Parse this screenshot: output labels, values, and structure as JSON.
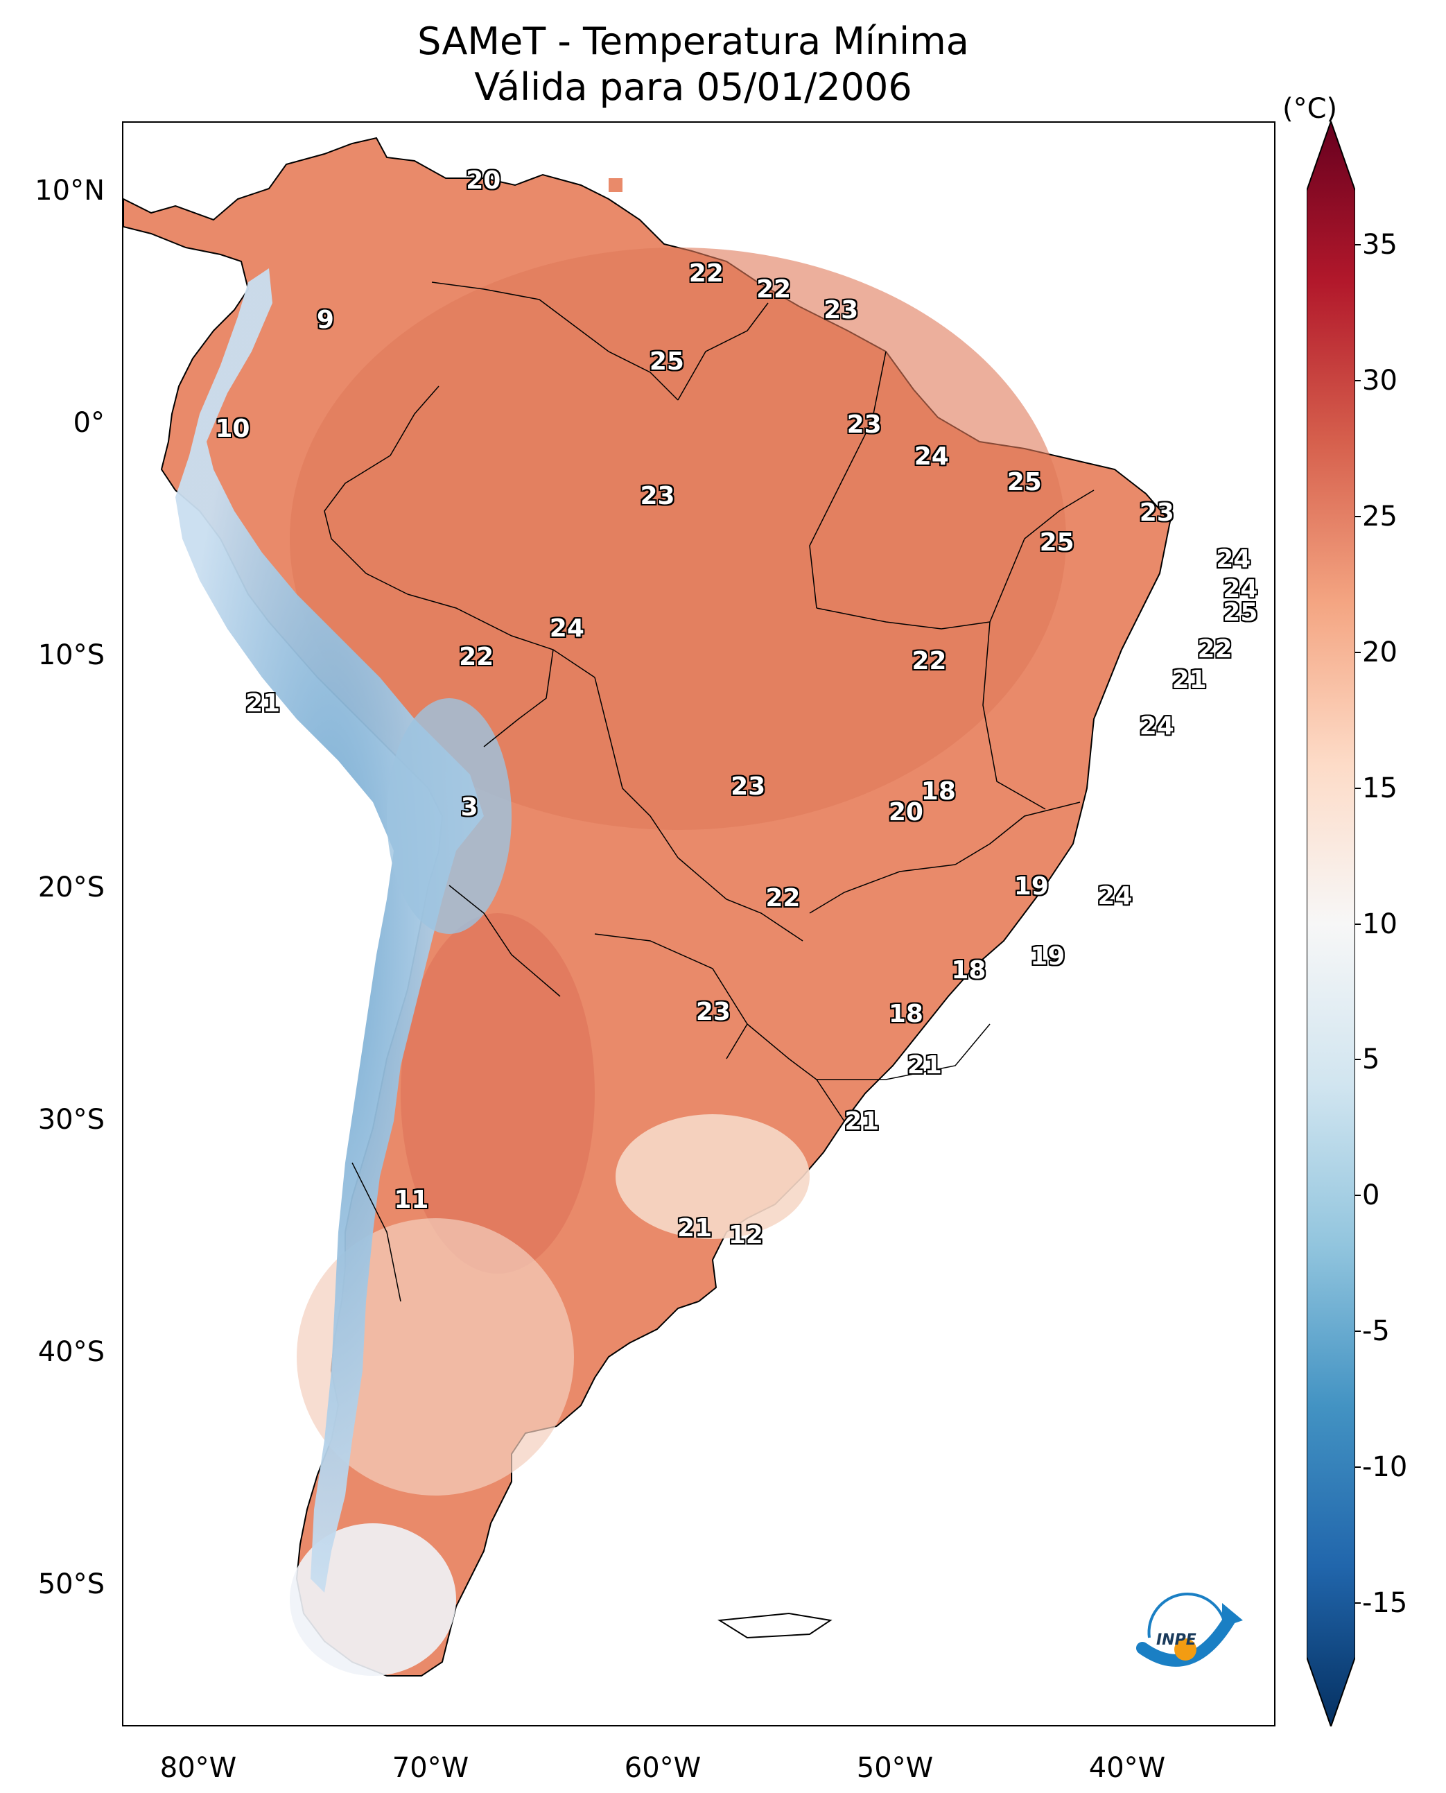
{
  "title": {
    "line1": "SAMeT - Temperatura Mínima",
    "line2": "Válida para 05/01/2006"
  },
  "colorbar": {
    "unit": "(°C)",
    "ticks": [
      "35",
      "30",
      "25",
      "20",
      "15",
      "10",
      "5",
      "0",
      "-5",
      "-10",
      "-15"
    ],
    "range": [
      -15,
      35
    ],
    "colormap": [
      "#053061",
      "#2166ac",
      "#4393c3",
      "#92c5de",
      "#d1e5f0",
      "#f7f7f7",
      "#fddbc7",
      "#f4a582",
      "#d6604d",
      "#b2182b",
      "#67001f"
    ]
  },
  "axes": {
    "lat_labels": [
      "10°N",
      "0°",
      "10°S",
      "20°S",
      "30°S",
      "40°S",
      "50°S"
    ],
    "lon_labels": [
      "80°W",
      "70°W",
      "60°W",
      "50°W",
      "40°W"
    ]
  },
  "logo": {
    "text": "INPE",
    "colors": {
      "blue": "#1a7fc4",
      "orange": "#f39c12"
    }
  },
  "map_values": [
    {
      "id": "v1",
      "text": "20",
      "lat": 10.5,
      "lon": -67.5
    },
    {
      "id": "v2",
      "text": "22",
      "lat": 6.5,
      "lon": -57.9
    },
    {
      "id": "v3",
      "text": "22",
      "lat": 5.8,
      "lon": -55.0
    },
    {
      "id": "v4",
      "text": "23",
      "lat": 4.9,
      "lon": -52.1
    },
    {
      "id": "v5",
      "text": "9",
      "lat": 4.5,
      "lon": -74.3
    },
    {
      "id": "v6",
      "text": "25",
      "lat": 2.7,
      "lon": -59.6
    },
    {
      "id": "v7",
      "text": "10",
      "lat": -0.2,
      "lon": -78.3
    },
    {
      "id": "v8",
      "text": "23",
      "lat": 0.0,
      "lon": -51.1
    },
    {
      "id": "v9",
      "text": "24",
      "lat": -1.4,
      "lon": -48.2
    },
    {
      "id": "v10",
      "text": "25",
      "lat": -2.5,
      "lon": -44.2
    },
    {
      "id": "v11",
      "text": "23",
      "lat": -3.1,
      "lon": -60.0
    },
    {
      "id": "v12",
      "text": "23",
      "lat": -3.8,
      "lon": -38.5
    },
    {
      "id": "v13",
      "text": "25",
      "lat": -5.1,
      "lon": -42.8
    },
    {
      "id": "v14",
      "text": "24",
      "lat": -5.8,
      "lon": -35.2
    },
    {
      "id": "v15",
      "text": "24",
      "lat": -7.1,
      "lon": -34.9
    },
    {
      "id": "v16",
      "text": "25",
      "lat": -8.1,
      "lon": -34.9
    },
    {
      "id": "v17",
      "text": "24",
      "lat": -8.8,
      "lon": -63.9
    },
    {
      "id": "v18",
      "text": "22",
      "lat": -9.7,
      "lon": -36.0
    },
    {
      "id": "v19",
      "text": "22",
      "lat": -10.0,
      "lon": -67.8
    },
    {
      "id": "v20",
      "text": "22",
      "lat": -10.2,
      "lon": -48.3
    },
    {
      "id": "v21",
      "text": "21",
      "lat": -11.0,
      "lon": -37.1
    },
    {
      "id": "v22",
      "text": "21",
      "lat": -12.0,
      "lon": -77.0
    },
    {
      "id": "v23",
      "text": "24",
      "lat": -13.0,
      "lon": -38.5
    },
    {
      "id": "v24",
      "text": "23",
      "lat": -15.6,
      "lon": -56.1
    },
    {
      "id": "v25",
      "text": "18",
      "lat": -15.8,
      "lon": -47.9
    },
    {
      "id": "v26",
      "text": "3",
      "lat": -16.5,
      "lon": -68.1
    },
    {
      "id": "v27",
      "text": "20",
      "lat": -16.7,
      "lon": -49.3
    },
    {
      "id": "v28",
      "text": "19",
      "lat": -19.9,
      "lon": -43.9
    },
    {
      "id": "v29",
      "text": "24",
      "lat": -20.3,
      "lon": -40.3
    },
    {
      "id": "v30",
      "text": "22",
      "lat": -20.4,
      "lon": -54.6
    },
    {
      "id": "v31",
      "text": "19",
      "lat": -22.9,
      "lon": -43.2
    },
    {
      "id": "v32",
      "text": "18",
      "lat": -23.5,
      "lon": -46.6
    },
    {
      "id": "v33",
      "text": "23",
      "lat": -25.3,
      "lon": -57.6
    },
    {
      "id": "v34",
      "text": "18",
      "lat": -25.4,
      "lon": -49.3
    },
    {
      "id": "v35",
      "text": "21",
      "lat": -27.6,
      "lon": -48.5
    },
    {
      "id": "v36",
      "text": "21",
      "lat": -30.0,
      "lon": -51.2
    },
    {
      "id": "v37",
      "text": "11",
      "lat": -33.4,
      "lon": -70.6
    },
    {
      "id": "v38",
      "text": "21",
      "lat": -34.6,
      "lon": -58.4
    },
    {
      "id": "v39",
      "text": "12",
      "lat": -34.9,
      "lon": -56.2
    }
  ]
}
